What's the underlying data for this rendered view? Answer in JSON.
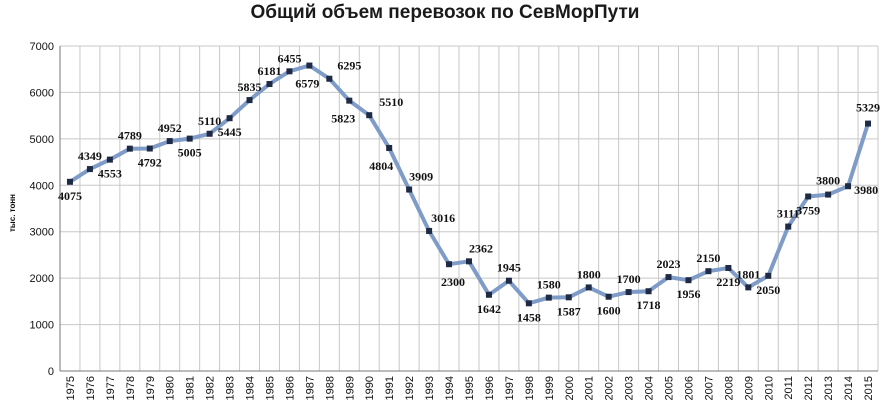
{
  "chart_data": {
    "type": "line",
    "title": "Общий объем перевозок по СевМорПути",
    "ylabel": "тыс. тонн",
    "xlabel": "",
    "ylim": [
      0,
      7000
    ],
    "yticks": [
      0,
      1000,
      2000,
      3000,
      4000,
      5000,
      6000,
      7000
    ],
    "grid": true,
    "line_color": "#7f9cc8",
    "marker_color": "#1f2a44",
    "categories": [
      "1975",
      "1976",
      "1977",
      "1978",
      "1979",
      "1980",
      "1981",
      "1982",
      "1983",
      "1984",
      "1985",
      "1986",
      "1987",
      "1988",
      "1989",
      "1990",
      "1991",
      "1992",
      "1993",
      "1994",
      "1995",
      "1996",
      "1997",
      "1998",
      "1999",
      "2000",
      "2001",
      "2002",
      "2003",
      "2004",
      "2005",
      "2006",
      "2007",
      "2008",
      "2009",
      "2010",
      "2011",
      "2012",
      "2013",
      "2014",
      "2015"
    ],
    "values": [
      4075,
      4349,
      4553,
      4789,
      4792,
      4952,
      5005,
      5110,
      5445,
      5835,
      6181,
      6455,
      6579,
      6295,
      5823,
      5510,
      4804,
      3909,
      3016,
      2300,
      2362,
      1642,
      1945,
      1458,
      1580,
      1587,
      1800,
      1600,
      1700,
      1718,
      2023,
      1956,
      2150,
      2219,
      1801,
      2050,
      3111,
      3759,
      3800,
      3980,
      5329
    ],
    "data_labels": [
      {
        "year": "1975",
        "text": "4075"
      },
      {
        "year": "1976",
        "text": "4349"
      },
      {
        "year": "1977",
        "text": "4553"
      },
      {
        "year": "1978",
        "text": "4789"
      },
      {
        "year": "1979",
        "text": "4792"
      },
      {
        "year": "1980",
        "text": "4952"
      },
      {
        "year": "1981",
        "text": "5005"
      },
      {
        "year": "1982",
        "text": "5110"
      },
      {
        "year": "1983",
        "text": "5445"
      },
      {
        "year": "1984",
        "text": "5835"
      },
      {
        "year": "1985",
        "text": "6181"
      },
      {
        "year": "1986",
        "text": "6455"
      },
      {
        "year": "1987",
        "text": "6579"
      },
      {
        "year": "1988",
        "text": "6295"
      },
      {
        "year": "1989",
        "text": "5823"
      },
      {
        "year": "1990",
        "text": "5510"
      },
      {
        "year": "1991",
        "text": "4804"
      },
      {
        "year": "1992",
        "text": "3909"
      },
      {
        "year": "1993",
        "text": "3016"
      },
      {
        "year": "1994",
        "text": "2300"
      },
      {
        "year": "1995",
        "text": "2362"
      },
      {
        "year": "1996",
        "text": "1642"
      },
      {
        "year": "1997",
        "text": "1945"
      },
      {
        "year": "1998",
        "text": "1458"
      },
      {
        "year": "1999",
        "text": "1580"
      },
      {
        "year": "2000",
        "text": "1587"
      },
      {
        "year": "2001",
        "text": "1800"
      },
      {
        "year": "2002",
        "text": "1600"
      },
      {
        "year": "2003",
        "text": "1700"
      },
      {
        "year": "2004",
        "text": "1718"
      },
      {
        "year": "2005",
        "text": "2023"
      },
      {
        "year": "2006",
        "text": "1956"
      },
      {
        "year": "2007",
        "text": "2150"
      },
      {
        "year": "2008",
        "text": "2219"
      },
      {
        "year": "2009",
        "text": "1801"
      },
      {
        "year": "2010",
        "text": "2050"
      },
      {
        "year": "2011",
        "text": "3111"
      },
      {
        "year": "2012",
        "text": "3759"
      },
      {
        "year": "2013",
        "text": "3800"
      },
      {
        "year": "2014",
        "text": "3980"
      },
      {
        "year": "2015",
        "text": "5329"
      }
    ]
  }
}
